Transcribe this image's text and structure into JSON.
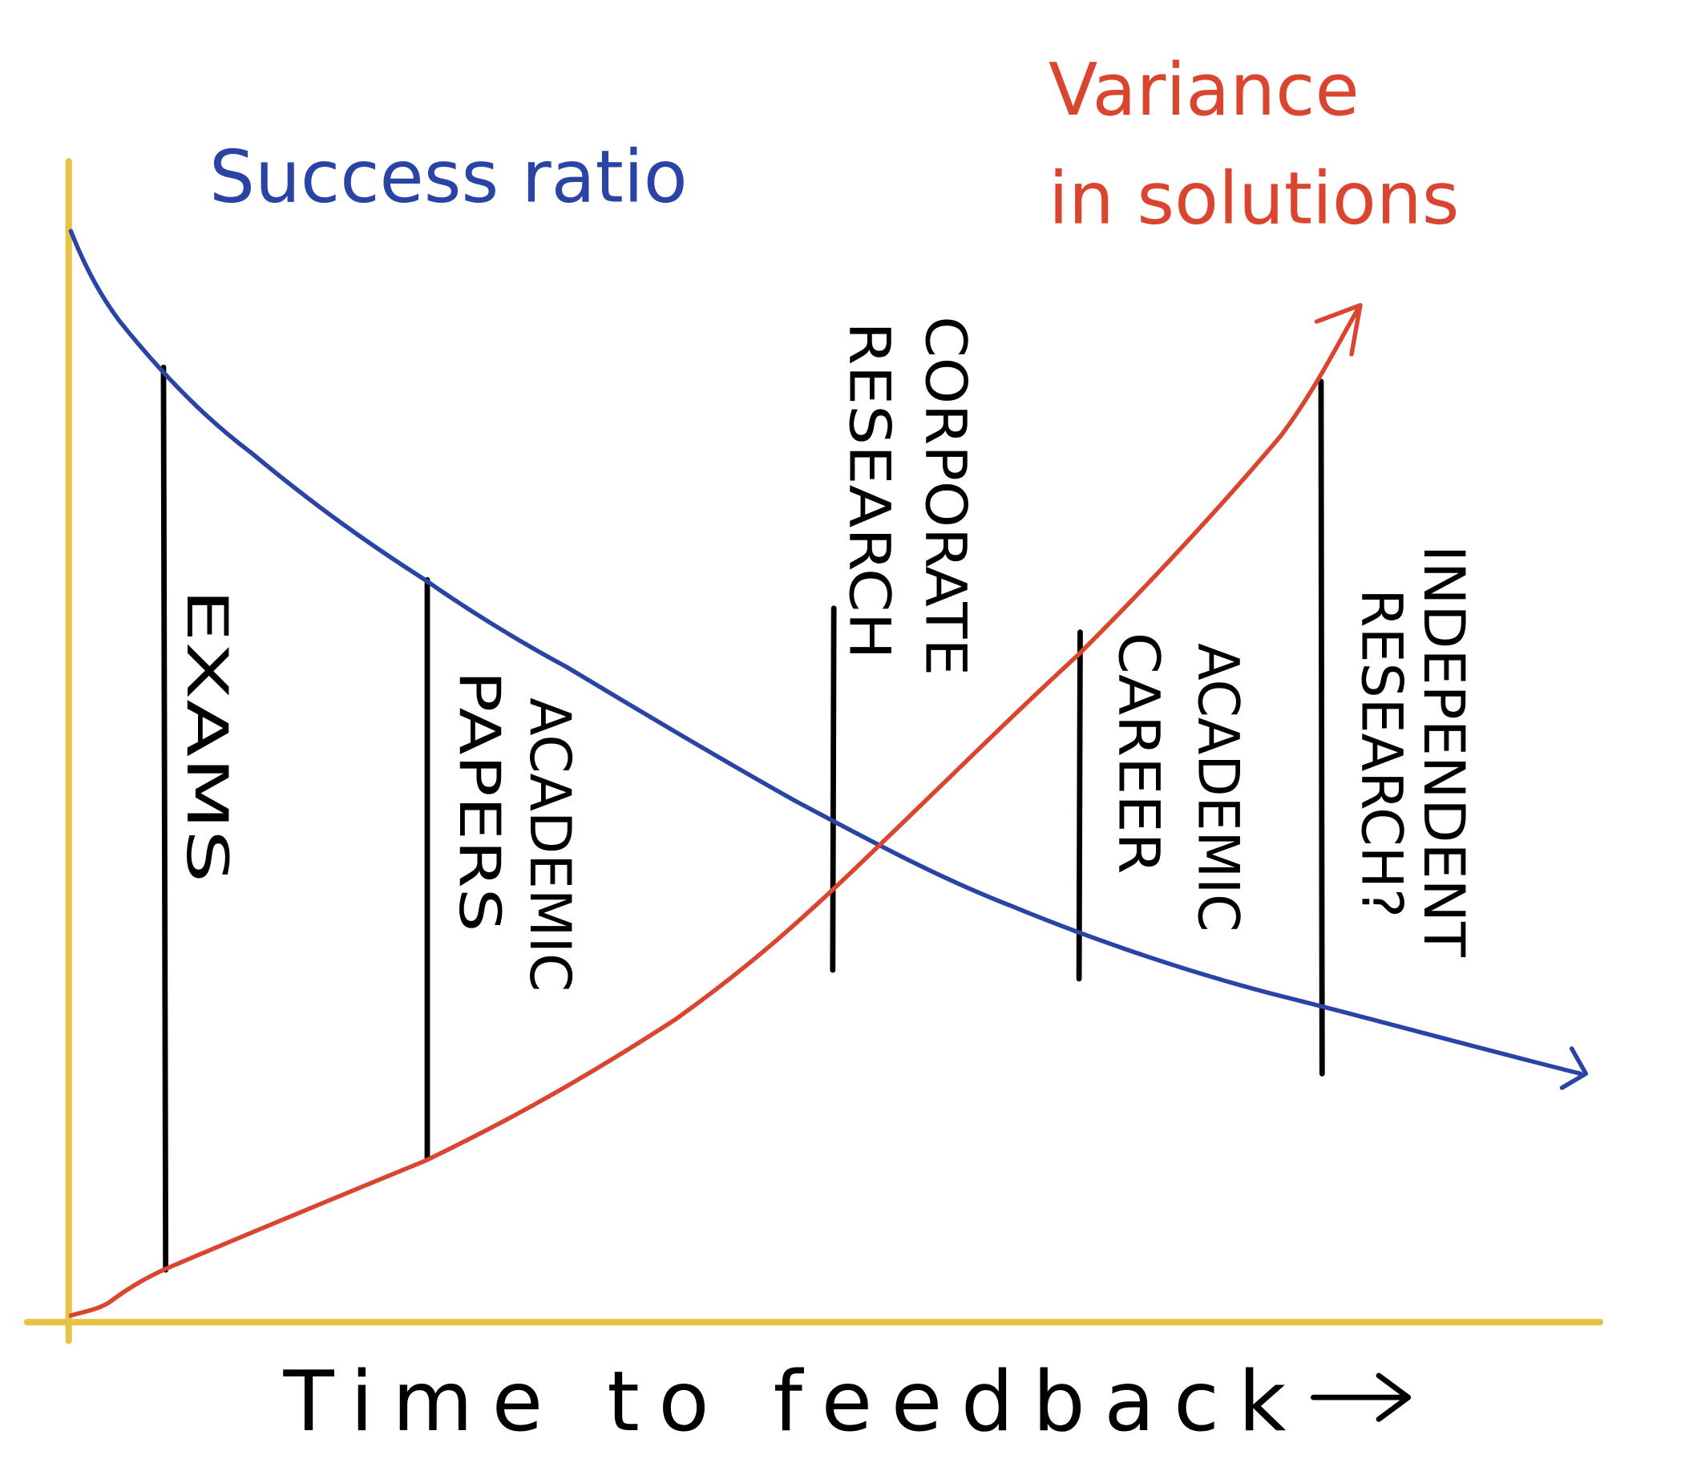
{
  "curves": {
    "success_ratio": "Success ratio",
    "variance": [
      "Variance",
      "in solutions"
    ]
  },
  "x_axis_label": "Time to feedback",
  "regions": [
    {
      "lines": [
        "EXAMS"
      ]
    },
    {
      "lines": [
        "ACADEMIC",
        "PAPERS"
      ]
    },
    {
      "lines": [
        "CORPORATE",
        "RESEARCH"
      ]
    },
    {
      "lines": [
        "ACADEMIC",
        "CAREER"
      ]
    },
    {
      "lines": [
        "INDEPENDENT",
        "RESEARCH?"
      ]
    }
  ]
}
